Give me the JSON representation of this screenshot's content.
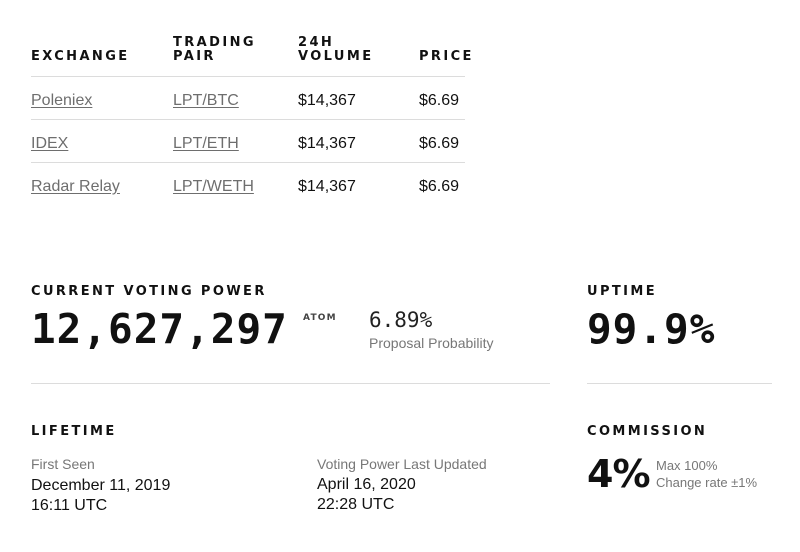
{
  "exchange_table": {
    "headers": [
      "EXCHANGE",
      "TRADING PAIR",
      "24H VOLUME",
      "PRICE"
    ],
    "rows": [
      {
        "exchange": "Poleniex",
        "pair": "LPT/BTC",
        "volume": "$14,367",
        "price": "$6.69"
      },
      {
        "exchange": "IDEX",
        "pair": "LPT/ETH",
        "volume": "$14,367",
        "price": "$6.69"
      },
      {
        "exchange": "Radar Relay",
        "pair": "LPT/WETH",
        "volume": "$14,367",
        "price": "$6.69"
      }
    ]
  },
  "voting_power": {
    "label": "CURRENT VOTING POWER",
    "value": "12,627,297",
    "unit": "ATOM",
    "probability": "6.89%",
    "probability_label": "Proposal Probability"
  },
  "uptime": {
    "label": "UPTIME",
    "value": "99.9%"
  },
  "lifetime": {
    "label": "LIFETIME",
    "first_seen_label": "First Seen",
    "first_seen_date": "December 11, 2019",
    "first_seen_time": "16:11 UTC",
    "last_updated_label": "Voting Power Last Updated",
    "last_updated_date": "April 16, 2020",
    "last_updated_time": "22:28 UTC"
  },
  "commission": {
    "label": "COMMISSION",
    "value": "4%",
    "max": "Max 100%",
    "change_rate": "Change rate ±1%"
  }
}
